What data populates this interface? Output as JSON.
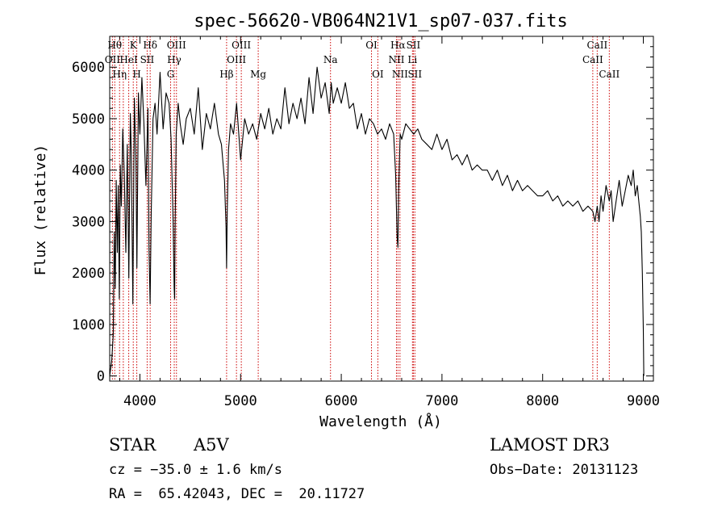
{
  "chart_data": {
    "type": "line",
    "title": "spec-56620-VB064N21V1_sp07-037.fits",
    "xlabel": "Wavelength (Å)",
    "ylabel": "Flux (relative)",
    "xlim": [
      3700,
      9100
    ],
    "ylim": [
      -100,
      6600
    ],
    "xticks": [
      4000,
      5000,
      6000,
      7000,
      8000,
      9000
    ],
    "yticks": [
      0,
      1000,
      2000,
      3000,
      4000,
      5000,
      6000
    ],
    "x_tick_labels": [
      "4000",
      "5000",
      "6000",
      "7000",
      "8000",
      "9000"
    ],
    "y_tick_labels": [
      "0",
      "1000",
      "2000",
      "3000",
      "4000",
      "5000",
      "6000"
    ],
    "line_color": "#000000",
    "marker_color": "#cc0000",
    "series": [
      {
        "x": [
          3700,
          3720,
          3735,
          3745,
          3755,
          3765,
          3775,
          3785,
          3795,
          3805,
          3815,
          3830,
          3845,
          3860,
          3875,
          3890,
          3905,
          3915,
          3930,
          3945,
          3960,
          3970,
          3985,
          4000,
          4020,
          4040,
          4060,
          4080,
          4090,
          4101,
          4112,
          4130,
          4150,
          4170,
          4200,
          4230,
          4260,
          4290,
          4310,
          4330,
          4340,
          4345,
          4350,
          4360,
          4380,
          4400,
          4430,
          4460,
          4500,
          4540,
          4580,
          4620,
          4660,
          4700,
          4740,
          4780,
          4810,
          4840,
          4855,
          4861,
          4867,
          4880,
          4900,
          4930,
          4960,
          5000,
          5040,
          5080,
          5120,
          5160,
          5200,
          5240,
          5280,
          5320,
          5360,
          5400,
          5440,
          5480,
          5520,
          5560,
          5600,
          5640,
          5680,
          5720,
          5760,
          5800,
          5840,
          5880,
          5900,
          5920,
          5960,
          6000,
          6040,
          6080,
          6120,
          6160,
          6200,
          6240,
          6280,
          6320,
          6360,
          6400,
          6440,
          6480,
          6520,
          6540,
          6555,
          6563,
          6570,
          6585,
          6600,
          6640,
          6680,
          6720,
          6760,
          6800,
          6850,
          6900,
          6950,
          7000,
          7050,
          7100,
          7150,
          7200,
          7250,
          7300,
          7350,
          7400,
          7450,
          7500,
          7550,
          7600,
          7650,
          7700,
          7750,
          7800,
          7850,
          7900,
          7950,
          8000,
          8050,
          8100,
          8150,
          8200,
          8250,
          8300,
          8350,
          8400,
          8450,
          8498,
          8520,
          8542,
          8560,
          8580,
          8600,
          8630,
          8662,
          8680,
          8700,
          8730,
          8760,
          8790,
          8820,
          8850,
          8880,
          8900,
          8920,
          8940,
          8960,
          8970,
          8980,
          8990,
          9000,
          9005
        ],
        "y": [
          0,
          300,
          800,
          2800,
          1700,
          3800,
          2400,
          3700,
          1500,
          4100,
          3300,
          4800,
          3900,
          2400,
          4500,
          1900,
          5100,
          4300,
          1400,
          5400,
          4200,
          2100,
          5500,
          4700,
          5800,
          4900,
          3700,
          5200,
          2500,
          1400,
          3100,
          5000,
          5300,
          4700,
          5900,
          4800,
          5500,
          5300,
          4600,
          3000,
          1700,
          1500,
          2900,
          4700,
          5300,
          4900,
          4500,
          5000,
          5200,
          4700,
          5600,
          4400,
          5100,
          4800,
          5300,
          4700,
          4500,
          3800,
          2900,
          2100,
          3200,
          4400,
          4900,
          4700,
          5300,
          4200,
          5000,
          4700,
          4900,
          4600,
          5100,
          4800,
          5200,
          4700,
          5000,
          4800,
          5600,
          4900,
          5300,
          5000,
          5400,
          4900,
          5800,
          5100,
          6000,
          5400,
          5700,
          5100,
          5700,
          5300,
          5600,
          5300,
          5700,
          5200,
          5300,
          4800,
          5100,
          4700,
          5000,
          4900,
          4700,
          4800,
          4600,
          4900,
          4700,
          3900,
          2700,
          2500,
          3600,
          4700,
          4600,
          4900,
          4800,
          4700,
          4800,
          4600,
          4500,
          4400,
          4700,
          4400,
          4600,
          4200,
          4300,
          4100,
          4300,
          4000,
          4100,
          4000,
          4000,
          3800,
          4000,
          3700,
          3900,
          3600,
          3800,
          3600,
          3700,
          3600,
          3500,
          3500,
          3600,
          3400,
          3500,
          3300,
          3400,
          3300,
          3400,
          3200,
          3300,
          3200,
          3000,
          3300,
          3000,
          3500,
          3200,
          3700,
          3400,
          3600,
          3000,
          3400,
          3800,
          3300,
          3600,
          3900,
          3700,
          4000,
          3500,
          3700,
          3300,
          3100,
          2800,
          2000,
          900,
          0
        ]
      }
    ],
    "lines": [
      {
        "x": 3750,
        "label": "Hθ",
        "row": 0,
        "dx": 0
      },
      {
        "x": 3727,
        "label": "OII",
        "row": 1,
        "dx": 0
      },
      {
        "x": 3798,
        "label": "Hη",
        "row": 2,
        "dx": 0
      },
      {
        "x": 3835,
        "label": "",
        "row": 0,
        "dx": 0
      },
      {
        "x": 3889,
        "label": "HeI",
        "row": 1,
        "dx": 0
      },
      {
        "x": 3934,
        "label": "K",
        "row": 0,
        "dx": 0
      },
      {
        "x": 3969,
        "label": "H",
        "row": 2,
        "dx": 0
      },
      {
        "x": 4072,
        "label": "SII",
        "row": 1,
        "dx": 0
      },
      {
        "x": 4102,
        "label": "Hδ",
        "row": 0,
        "dx": 0
      },
      {
        "x": 4305,
        "label": "G",
        "row": 2,
        "dx": 0
      },
      {
        "x": 4341,
        "label": "Hγ",
        "row": 1,
        "dx": 0
      },
      {
        "x": 4363,
        "label": "OIII",
        "row": 0,
        "dx": 0
      },
      {
        "x": 4861,
        "label": "Hβ",
        "row": 2,
        "dx": 0
      },
      {
        "x": 4959,
        "label": "OIII",
        "row": 1,
        "dx": 0
      },
      {
        "x": 5007,
        "label": "OIII",
        "row": 0,
        "dx": 0
      },
      {
        "x": 5175,
        "label": "Mg",
        "row": 2,
        "dx": 0
      },
      {
        "x": 5893,
        "label": "Na",
        "row": 1,
        "dx": 0
      },
      {
        "x": 6300,
        "label": "OI",
        "row": 0,
        "dx": 0
      },
      {
        "x": 6363,
        "label": "OI",
        "row": 2,
        "dx": 0
      },
      {
        "x": 6548,
        "label": "NII",
        "row": 1,
        "dx": 0
      },
      {
        "x": 6563,
        "label": "Hα",
        "row": 0,
        "dx": 0
      },
      {
        "x": 6583,
        "label": "NII",
        "row": 2,
        "dx": 0
      },
      {
        "x": 6707,
        "label": "Li",
        "row": 1,
        "dx": 0
      },
      {
        "x": 6716,
        "label": "SII",
        "row": 0,
        "dx": 0
      },
      {
        "x": 6731,
        "label": "SII",
        "row": 2,
        "dx": 0
      },
      {
        "x": 8498,
        "label": "CaII",
        "row": 1,
        "dx": 0
      },
      {
        "x": 8542,
        "label": "CaII",
        "row": 0,
        "dx": 0
      },
      {
        "x": 8662,
        "label": "CaII",
        "row": 2,
        "dx": 0
      }
    ]
  },
  "info": {
    "object_type": "STAR",
    "subclass": "A5V",
    "survey": "LAMOST DR3",
    "cz": "cz = −35.0 ± 1.6 km/s",
    "coords": "RA =  65.42043, DEC =  20.11727",
    "obs_date": "Obs−Date: 20131123"
  }
}
